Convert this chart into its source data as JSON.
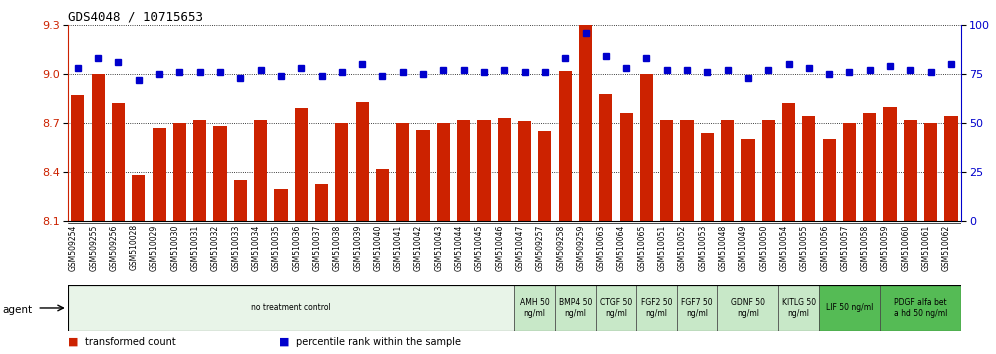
{
  "title": "GDS4048 / 10715653",
  "ylim_left": [
    8.1,
    9.3
  ],
  "ylim_right": [
    0,
    100
  ],
  "yticks_left": [
    8.1,
    8.4,
    8.7,
    9.0,
    9.3
  ],
  "yticks_right": [
    0,
    25,
    50,
    75,
    100
  ],
  "bar_color": "#cc2200",
  "dot_color": "#0000cc",
  "categories": [
    "GSM509254",
    "GSM509255",
    "GSM509256",
    "GSM510028",
    "GSM510029",
    "GSM510030",
    "GSM510031",
    "GSM510032",
    "GSM510033",
    "GSM510034",
    "GSM510035",
    "GSM510036",
    "GSM510037",
    "GSM510038",
    "GSM510039",
    "GSM510040",
    "GSM510041",
    "GSM510042",
    "GSM510043",
    "GSM510044",
    "GSM510045",
    "GSM510046",
    "GSM510047",
    "GSM509257",
    "GSM509258",
    "GSM509259",
    "GSM510063",
    "GSM510064",
    "GSM510065",
    "GSM510051",
    "GSM510052",
    "GSM510053",
    "GSM510048",
    "GSM510049",
    "GSM510050",
    "GSM510054",
    "GSM510055",
    "GSM510056",
    "GSM510057",
    "GSM510058",
    "GSM510059",
    "GSM510060",
    "GSM510061",
    "GSM510062"
  ],
  "bar_values": [
    8.87,
    9.0,
    8.82,
    8.38,
    8.67,
    8.7,
    8.72,
    8.68,
    8.35,
    8.72,
    8.3,
    8.79,
    8.33,
    8.7,
    8.83,
    8.42,
    8.7,
    8.66,
    8.7,
    8.72,
    8.72,
    8.73,
    8.71,
    8.65,
    9.02,
    9.3,
    8.88,
    8.76,
    9.0,
    8.72,
    8.72,
    8.64,
    8.72,
    8.6,
    8.72,
    8.82,
    8.74,
    8.6,
    8.7,
    8.76,
    8.8,
    8.72,
    8.7,
    8.74
  ],
  "dot_values": [
    78,
    83,
    81,
    72,
    75,
    76,
    76,
    76,
    73,
    77,
    74,
    78,
    74,
    76,
    80,
    74,
    76,
    75,
    77,
    77,
    76,
    77,
    76,
    76,
    83,
    96,
    84,
    78,
    83,
    77,
    77,
    76,
    77,
    73,
    77,
    80,
    78,
    75,
    76,
    77,
    79,
    77,
    76,
    80
  ],
  "agent_groups": [
    {
      "label": "no treatment control",
      "start": 0,
      "end": 22,
      "color": "#e8f4e8"
    },
    {
      "label": "AMH 50\nng/ml",
      "start": 22,
      "end": 24,
      "color": "#c8e8c8"
    },
    {
      "label": "BMP4 50\nng/ml",
      "start": 24,
      "end": 26,
      "color": "#c8e8c8"
    },
    {
      "label": "CTGF 50\nng/ml",
      "start": 26,
      "end": 28,
      "color": "#c8e8c8"
    },
    {
      "label": "FGF2 50\nng/ml",
      "start": 28,
      "end": 30,
      "color": "#c8e8c8"
    },
    {
      "label": "FGF7 50\nng/ml",
      "start": 30,
      "end": 32,
      "color": "#c8e8c8"
    },
    {
      "label": "GDNF 50\nng/ml",
      "start": 32,
      "end": 35,
      "color": "#c8e8c8"
    },
    {
      "label": "KITLG 50\nng/ml",
      "start": 35,
      "end": 37,
      "color": "#c8e8c8"
    },
    {
      "label": "LIF 50 ng/ml",
      "start": 37,
      "end": 40,
      "color": "#55bb55"
    },
    {
      "label": "PDGF alfa bet\na hd 50 ng/ml",
      "start": 40,
      "end": 44,
      "color": "#55bb55"
    }
  ],
  "legend_bar_label": "transformed count",
  "legend_dot_label": "percentile rank within the sample",
  "agent_label": "agent"
}
